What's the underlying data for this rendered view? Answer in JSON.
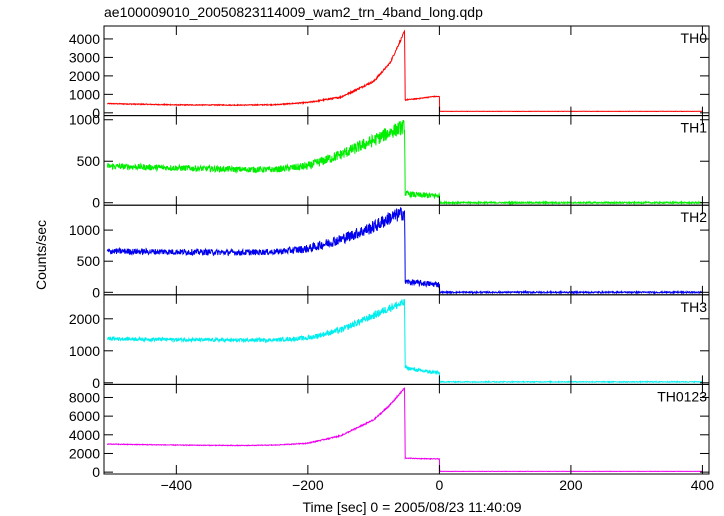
{
  "title": "ae100009010_20050823114009_wam2_trn_4band_long.qdp",
  "ylabel": "Counts/sec",
  "xlabel": "Time [sec] 0 = 2005/08/23 11:40:09",
  "chart_data": {
    "type": "line",
    "title": "ae100009010_20050823114009_wam2_trn_4band_long.qdp",
    "xlabel": "Time [sec] 0 = 2005/08/23 11:40:09",
    "ylabel": "Counts/sec",
    "xlim": [
      -510,
      410
    ],
    "x_ticks": [
      -400,
      -200,
      0,
      200,
      400
    ],
    "x_tick_labels": [
      "−400",
      "−200",
      "0",
      "200",
      "400"
    ],
    "grid": false,
    "legend": "none",
    "breakpoints": {
      "peak_time": -53,
      "drop_time": -52,
      "end_time": 0
    },
    "panels": [
      {
        "name": "TH0",
        "color": "#ff0000",
        "ylim": [
          -150,
          4700
        ],
        "y_ticks": [
          0,
          1000,
          2000,
          3000,
          4000
        ],
        "y_tick_labels": [
          "0",
          "1000",
          "2000",
          "3000",
          "4000"
        ],
        "series": {
          "x": [
            -505,
            -400,
            -300,
            -250,
            -200,
            -150,
            -100,
            -75,
            -53,
            -52,
            -30,
            -10,
            0,
            0.5,
            400
          ],
          "y": [
            500,
            430,
            420,
            440,
            560,
            850,
            1700,
            2700,
            4400,
            700,
            780,
            880,
            880,
            80,
            80
          ],
          "noise": 40
        }
      },
      {
        "name": "TH1",
        "color": "#00ee00",
        "ylim": [
          -30,
          1050
        ],
        "y_ticks": [
          0,
          500,
          1000
        ],
        "y_tick_labels": [
          "0",
          "500",
          "1000"
        ],
        "series": {
          "x": [
            -505,
            -400,
            -300,
            -250,
            -200,
            -150,
            -100,
            -75,
            -53,
            -52,
            -30,
            -10,
            0,
            0.5,
            400
          ],
          "y": [
            440,
            420,
            400,
            400,
            440,
            580,
            750,
            850,
            920,
            110,
            90,
            85,
            85,
            0,
            0
          ],
          "noise": 60
        }
      },
      {
        "name": "TH2",
        "color": "#0000ee",
        "ylim": [
          -40,
          1400
        ],
        "y_ticks": [
          0,
          500,
          1000
        ],
        "y_tick_labels": [
          "0",
          "500",
          "1000"
        ],
        "series": {
          "x": [
            -505,
            -400,
            -300,
            -250,
            -200,
            -150,
            -100,
            -75,
            -53,
            -52,
            -30,
            -10,
            0,
            0.5,
            400
          ],
          "y": [
            660,
            650,
            640,
            650,
            700,
            850,
            1050,
            1200,
            1280,
            170,
            150,
            130,
            130,
            0,
            0
          ],
          "noise": 80
        }
      },
      {
        "name": "TH3",
        "color": "#00eeee",
        "ylim": [
          -50,
          2750
        ],
        "y_ticks": [
          0,
          1000,
          2000
        ],
        "y_tick_labels": [
          "0",
          "1000",
          "2000"
        ],
        "series": {
          "x": [
            -505,
            -400,
            -300,
            -250,
            -200,
            -150,
            -100,
            -75,
            -53,
            -52,
            -30,
            -10,
            0,
            0.5,
            400
          ],
          "y": [
            1380,
            1350,
            1330,
            1340,
            1400,
            1650,
            2100,
            2350,
            2500,
            480,
            380,
            330,
            320,
            30,
            30
          ],
          "noise": 90
        }
      },
      {
        "name": "TH0123",
        "color": "#ee00ee",
        "ylim": [
          -200,
          9400
        ],
        "y_ticks": [
          0,
          2000,
          4000,
          6000,
          8000
        ],
        "y_tick_labels": [
          "0",
          "2000",
          "4000",
          "6000",
          "8000"
        ],
        "series": {
          "x": [
            -505,
            -400,
            -300,
            -250,
            -200,
            -150,
            -100,
            -75,
            -53,
            -52,
            -30,
            -10,
            0,
            0.5,
            400
          ],
          "y": [
            3000,
            2900,
            2850,
            2900,
            3100,
            3900,
            5600,
            7200,
            9000,
            1500,
            1450,
            1420,
            1420,
            80,
            80
          ],
          "noise": 60
        }
      }
    ]
  }
}
